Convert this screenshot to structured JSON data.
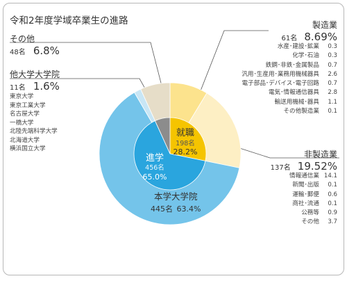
{
  "title": "令和2年度学域卒業生の進路",
  "chart_data": {
    "type": "pie",
    "total_note": "",
    "inner_ring": [
      {
        "label": "就職",
        "count": "198名",
        "percent": "28.2%",
        "value": 28.2,
        "color": "#f5c400"
      },
      {
        "label": "進学",
        "count": "456名",
        "percent": "65.0%",
        "value": 65.0,
        "color": "#2aa5de"
      },
      {
        "label": "",
        "count": "",
        "percent": "",
        "value": 6.8,
        "color": "#8c8c8c"
      }
    ],
    "outer_ring": [
      {
        "key": "manufacturing",
        "value": 8.69,
        "color": "#fce38d"
      },
      {
        "key": "non_manufacturing",
        "value": 19.52,
        "color": "#fdefc4"
      },
      {
        "key": "own_grad_school",
        "value": 63.4,
        "color": "#74c4ea"
      },
      {
        "key": "other_grad_school",
        "value": 1.6,
        "color": "#c8e6f5"
      },
      {
        "key": "other",
        "value": 6.8,
        "color": "#e6ddc8"
      }
    ]
  },
  "labels": {
    "manufacturing": {
      "name": "製造業",
      "count": "61名",
      "percent": "8.69%",
      "items": [
        {
          "name": "水産･建設･鉱業",
          "value": "0.3"
        },
        {
          "name": "化学･石油",
          "value": "0.3"
        },
        {
          "name": "鉄鋼･非鉄･金属製品",
          "value": "0.7"
        },
        {
          "name": "汎用･生産用･業務用機械器具",
          "value": "2.6"
        },
        {
          "name": "電子部品･デバイス･電子回路",
          "value": "0.7"
        },
        {
          "name": "電気･情報通信器具",
          "value": "2.8"
        },
        {
          "name": "輸送用機械･器具",
          "value": "1.1"
        },
        {
          "name": "その他製造業",
          "value": "0.1"
        }
      ]
    },
    "non_manufacturing": {
      "name": "非製造業",
      "count": "137名",
      "percent": "19.52%",
      "items": [
        {
          "name": "情報通信業",
          "value": "14.1"
        },
        {
          "name": "新聞･出版",
          "value": "0.1"
        },
        {
          "name": "運輸･郵便",
          "value": "0.6"
        },
        {
          "name": "商社･流通",
          "value": "0.1"
        },
        {
          "name": "公務等",
          "value": "0.9"
        },
        {
          "name": "その他",
          "value": "3.7"
        }
      ]
    },
    "other": {
      "name": "その他",
      "count": "48名",
      "percent": "6.8%"
    },
    "other_grad_school": {
      "name": "他大学大学院",
      "count": "11名",
      "percent": "1.6%",
      "items": [
        "東京大学",
        "東京工業大学",
        "名古屋大学",
        "一橋大学",
        "北陸先端科学大学",
        "北海道大学",
        "横浜国立大学"
      ]
    },
    "own_grad_school": {
      "name": "本学大学院",
      "count": "445名",
      "percent": "63.4%"
    }
  }
}
